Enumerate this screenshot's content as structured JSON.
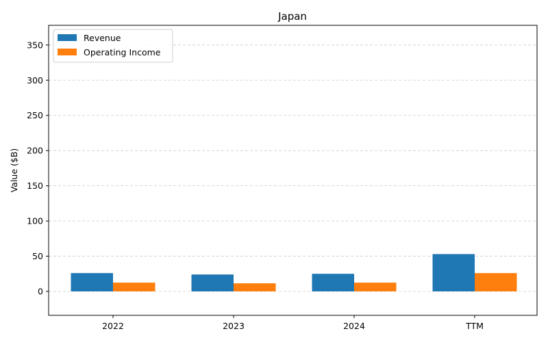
{
  "chart_data": {
    "type": "bar",
    "title": "Japan",
    "xlabel": "",
    "ylabel": "Value ($B)",
    "categories": [
      "2022",
      "2023",
      "2024",
      "TTM"
    ],
    "series": [
      {
        "name": "Revenue",
        "color": "#1f77b4",
        "values": [
          26,
          24,
          25,
          53
        ]
      },
      {
        "name": "Operating Income",
        "color": "#ff7f0e",
        "values": [
          12.5,
          11.5,
          12.5,
          26
        ]
      }
    ],
    "ylim": [
      -34,
      378
    ],
    "yticks": [
      0,
      50,
      100,
      150,
      200,
      250,
      300,
      350
    ],
    "grid": true,
    "legend_position": "top-left"
  }
}
